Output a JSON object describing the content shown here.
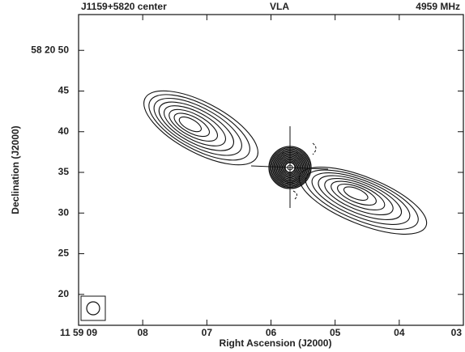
{
  "chart_data": {
    "type": "contour",
    "title_left": "J1159+5820 center",
    "title_center": "VLA",
    "title_right": "4959 MHz",
    "x_label": "Right Ascension (J2000)",
    "y_label": "Declination (J2000)",
    "xlim": [
      9,
      3
    ],
    "ylim": [
      16.2,
      54.4
    ],
    "xticks": [
      {
        "value": 9,
        "label": "11 59 09"
      },
      {
        "value": 8,
        "label": "08"
      },
      {
        "value": 7,
        "label": "07"
      },
      {
        "value": 6,
        "label": "06"
      },
      {
        "value": 5,
        "label": "05"
      },
      {
        "value": 4,
        "label": "04"
      },
      {
        "value": 3,
        "label": "03"
      }
    ],
    "yticks": [
      {
        "value": 50,
        "label": "58 20 50"
      },
      45,
      40,
      35,
      30,
      25,
      20
    ]
  }
}
